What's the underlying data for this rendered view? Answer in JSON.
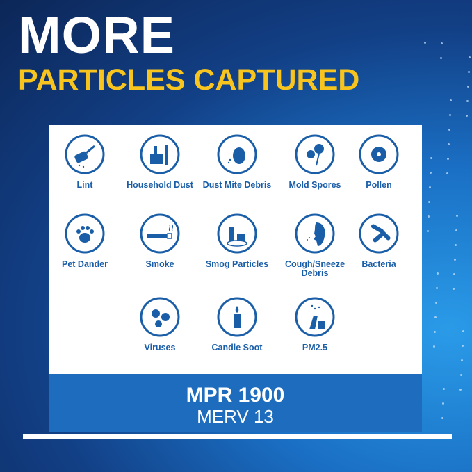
{
  "headline": {
    "line1": "MORE",
    "line2": "PARTICLES CAPTURED"
  },
  "colors": {
    "accent_yellow": "#f7c51e",
    "icon_blue": "#1a5ea8",
    "band_blue": "#1e6cbd"
  },
  "particles": [
    {
      "label": "Lint",
      "icon": "lint-roller-icon"
    },
    {
      "label": "Household Dust",
      "icon": "dustpan-brush-icon"
    },
    {
      "label": "Dust Mite Debris",
      "icon": "dust-mite-icon"
    },
    {
      "label": "Mold Spores",
      "icon": "mold-flower-icon"
    },
    {
      "label": "Pollen",
      "icon": "pollen-icon"
    },
    {
      "label": "Pet Dander",
      "icon": "paw-icon"
    },
    {
      "label": "Smoke",
      "icon": "cigarette-icon"
    },
    {
      "label": "Smog Particles",
      "icon": "factory-smog-icon"
    },
    {
      "label": "Cough/Sneeze Debris",
      "icon": "sneeze-face-icon"
    },
    {
      "label": "Bacteria",
      "icon": "bacteria-icon"
    },
    {
      "label": "Viruses",
      "icon": "virus-icon"
    },
    {
      "label": "Candle Soot",
      "icon": "candle-icon"
    },
    {
      "label": "PM2.5",
      "icon": "pm25-icon"
    }
  ],
  "rating": {
    "mpr": "MPR 1900",
    "merv": "MERV 13"
  }
}
